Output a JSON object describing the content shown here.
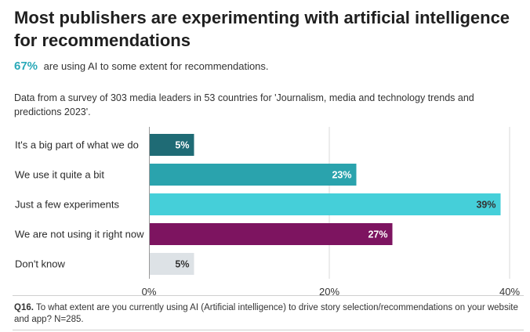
{
  "header": {
    "title": "Most publishers are experimenting with artificial intelligence for recommendations",
    "highlight_value": "67%",
    "highlight_text": "are using AI to some extent for recommendations.",
    "description": "Data from a survey of 303 media leaders in 53 countries for 'Journalism, media and technology trends and predictions 2023'."
  },
  "chart_data": {
    "type": "bar",
    "orientation": "horizontal",
    "categories": [
      "It's a big part of what we do",
      "We use it quite a bit",
      "Just a few experiments",
      "We are not using it right now",
      "Don't know"
    ],
    "values": [
      5,
      23,
      39,
      27,
      5
    ],
    "value_labels": [
      "5%",
      "23%",
      "39%",
      "27%",
      "5%"
    ],
    "colors": [
      "#1f6b75",
      "#2aa3ad",
      "#45cfd9",
      "#7d1460",
      "#dde2e6"
    ],
    "label_colors": [
      "#ffffff",
      "#ffffff",
      "#333333",
      "#ffffff",
      "#333333"
    ],
    "xlim": [
      0,
      40
    ],
    "xticks": [
      0,
      20,
      40
    ],
    "xtick_labels": [
      "0%",
      "20%",
      "40%"
    ],
    "grid": true
  },
  "footer": {
    "question_id": "Q16.",
    "question_text": "To what extent are you currently using AI (Artificial intelligence) to drive story selection/recommendations on your website and app? N=285."
  }
}
